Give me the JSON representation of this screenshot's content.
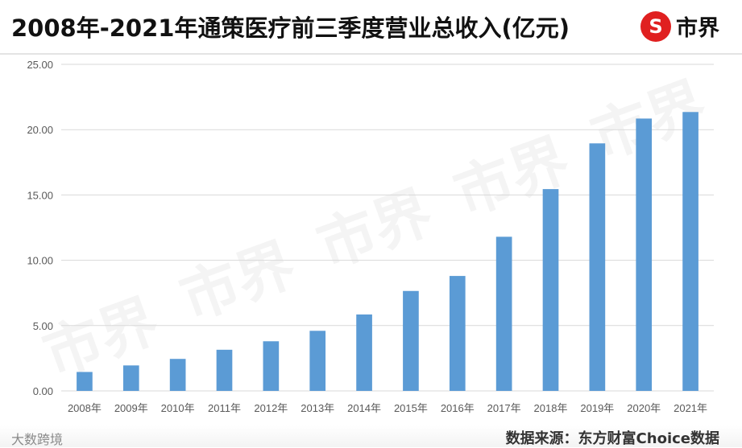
{
  "header": {
    "title": "2008年-2021年通策医疗前三季度营业总收入(亿元)",
    "logo_text": "市界",
    "logo_symbol": "S"
  },
  "footer": {
    "source": "数据来源：东方财富Choice数据",
    "corner_mark": "大数跨境"
  },
  "colors": {
    "bar": "#5b9bd5",
    "grid": "#d9d9d9",
    "axis_text": "#595959",
    "logo_red": "#e02020"
  },
  "chart_data": {
    "type": "bar",
    "categories": [
      "2008年",
      "2009年",
      "2010年",
      "2011年",
      "2012年",
      "2013年",
      "2014年",
      "2015年",
      "2016年",
      "2017年",
      "2018年",
      "2019年",
      "2020年",
      "2021年"
    ],
    "values": [
      1.45,
      1.95,
      2.45,
      3.15,
      3.8,
      4.6,
      5.85,
      7.65,
      8.8,
      11.8,
      15.45,
      18.95,
      20.85,
      21.35
    ],
    "ylim": [
      0,
      25
    ],
    "yticks": [
      "0.00",
      "5.00",
      "10.00",
      "15.00",
      "20.00",
      "25.00"
    ],
    "grid": true,
    "legend": "none"
  }
}
